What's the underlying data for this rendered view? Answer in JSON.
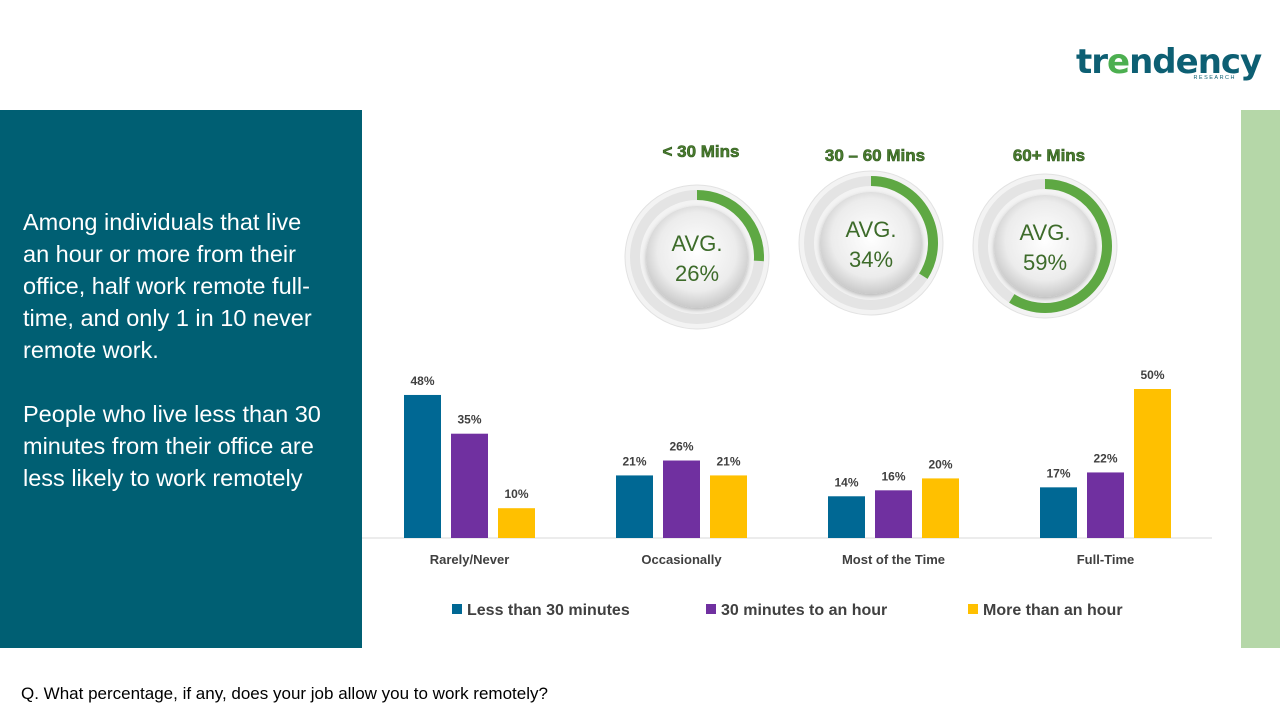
{
  "logo": {
    "prefix": "tr",
    "middle": "e",
    "suffix": "ndency",
    "sub": "RESEARCH",
    "color": "#0d5f73",
    "accent": "#4caf50"
  },
  "left_panel": {
    "paragraph1": "Among individuals that live an hour or more from their office, half work remote full-time, and only 1 in 10 never remote work.",
    "paragraph2": "People who live less than 30 minutes from their office are less likely to work remotely"
  },
  "question": "Q. What percentage, if any, does your job allow you to work remotely?",
  "donuts": [
    {
      "title": "< 30 Mins",
      "label": "AVG.",
      "value_text": "26%",
      "value": 26
    },
    {
      "title": "30 – 60 Mins",
      "label": "AVG.",
      "value_text": "34%",
      "value": 34
    },
    {
      "title": "60+ Mins",
      "label": "AVG.",
      "value_text": "59%",
      "value": 59
    }
  ],
  "colors": {
    "donut_fill": "#5ea843",
    "donut_title": "#4a7c2f",
    "center_text": "#3d6b2a",
    "axis": "#d9d9d9",
    "label_text": "#404040"
  },
  "chart_data": {
    "type": "bar",
    "categories": [
      "Rarely/Never",
      "Occasionally",
      "Most of the Time",
      "Full-Time"
    ],
    "series": [
      {
        "name": "Less than 30 minutes",
        "values": [
          48,
          21,
          14,
          17
        ],
        "labels": [
          "48%",
          "21%",
          "14%",
          "17%"
        ],
        "color": "#006894"
      },
      {
        "name": "30 minutes to an hour",
        "values": [
          35,
          26,
          16,
          22
        ],
        "labels": [
          "35%",
          "26%",
          "16%",
          "22%"
        ],
        "color": "#7030a0"
      },
      {
        "name": "More than an hour",
        "values": [
          10,
          21,
          20,
          50
        ],
        "labels": [
          "10%",
          "21%",
          "20%",
          "50%"
        ],
        "color": "#ffc000"
      }
    ],
    "ylim": [
      0,
      50
    ],
    "legend_position": "bottom",
    "title": "",
    "xlabel": "",
    "ylabel": ""
  }
}
